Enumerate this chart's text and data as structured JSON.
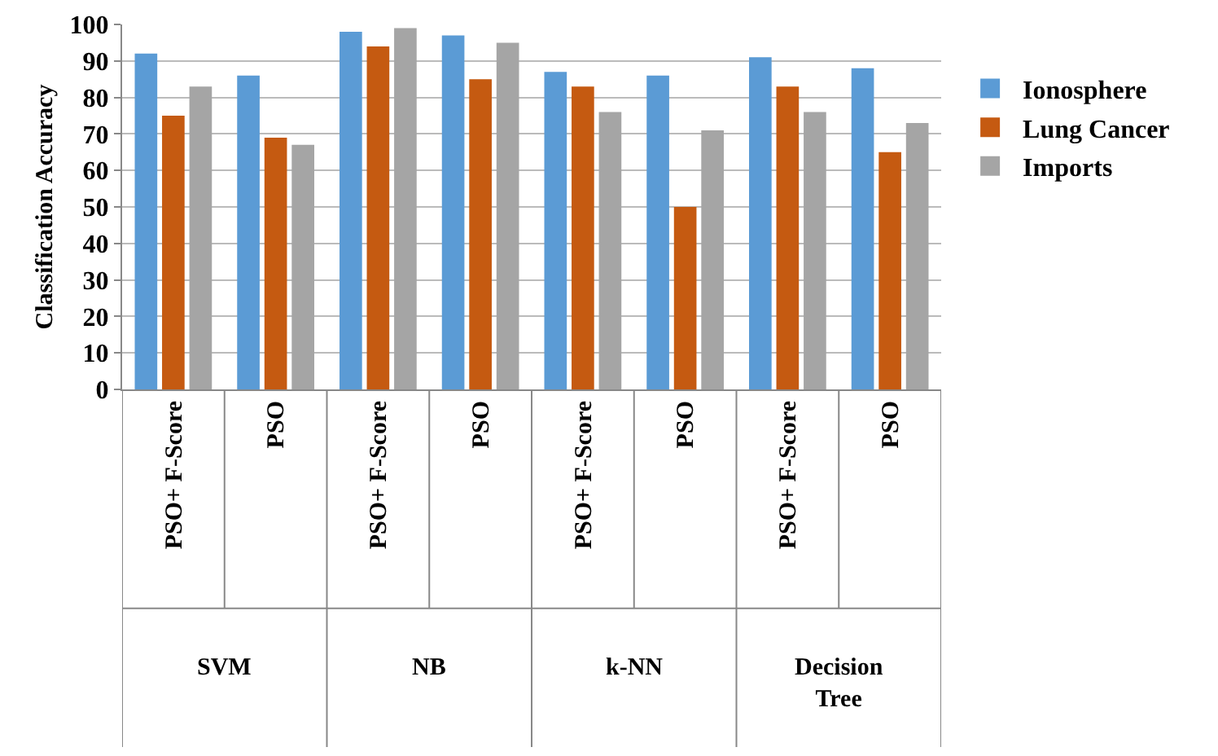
{
  "chart_data": {
    "type": "bar",
    "ylabel": "Classification Accuracy",
    "categories": [
      "PSO+ F-Score",
      "PSO",
      "PSO+ F-Score",
      "PSO",
      "PSO+ F-Score",
      "PSO",
      "PSO+ F-Score",
      "PSO"
    ],
    "series": [
      {
        "name": "Ionosphere",
        "color": "#5b9bd5",
        "values": [
          92,
          86,
          98,
          97,
          87,
          86,
          91,
          88
        ]
      },
      {
        "name": "Lung Cancer",
        "color": "#c55a11",
        "values": [
          75,
          69,
          94,
          85,
          83,
          50,
          83,
          65
        ]
      },
      {
        "name": "Imports",
        "color": "#a5a5a5",
        "values": [
          83,
          67,
          99,
          95,
          76,
          71,
          76,
          73
        ]
      }
    ],
    "ylim": [
      0,
      100
    ],
    "yticks": [
      0,
      10,
      20,
      30,
      40,
      50,
      60,
      70,
      80,
      90,
      100
    ],
    "grid": "y",
    "legend": "right",
    "annotations": [
      "SVM",
      "NB",
      "k-NN",
      "Decision Tree"
    ]
  }
}
